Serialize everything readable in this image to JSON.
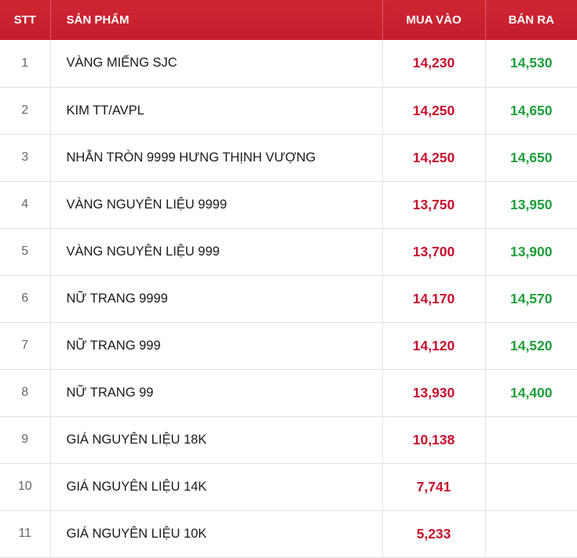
{
  "table": {
    "headers": {
      "stt": "STT",
      "product": "SẢN PHẨM",
      "buy": "MUA VÀO",
      "sell": "BÁN RA"
    },
    "rows": [
      {
        "stt": "1",
        "product": "VÀNG MIẾNG SJC",
        "buy": "14,230",
        "sell": "14,530"
      },
      {
        "stt": "2",
        "product": "KIM TT/AVPL",
        "buy": "14,250",
        "sell": "14,650"
      },
      {
        "stt": "3",
        "product": "NHẪN TRÒN 9999 HƯNG THỊNH VƯỢNG",
        "buy": "14,250",
        "sell": "14,650"
      },
      {
        "stt": "4",
        "product": "VÀNG NGUYÊN LIỆU 9999",
        "buy": "13,750",
        "sell": "13,950"
      },
      {
        "stt": "5",
        "product": "VÀNG NGUYÊN LIỆU 999",
        "buy": "13,700",
        "sell": "13,900"
      },
      {
        "stt": "6",
        "product": "NỮ TRANG 9999",
        "buy": "14,170",
        "sell": "14,570"
      },
      {
        "stt": "7",
        "product": "NỮ TRANG 999",
        "buy": "14,120",
        "sell": "14,520"
      },
      {
        "stt": "8",
        "product": "NỮ TRANG 99",
        "buy": "13,930",
        "sell": "14,400"
      },
      {
        "stt": "9",
        "product": "GIÁ NGUYÊN LIỆU 18K",
        "buy": "10,138",
        "sell": ""
      },
      {
        "stt": "10",
        "product": "GIÁ NGUYÊN LIỆU 14K",
        "buy": "7,741",
        "sell": ""
      },
      {
        "stt": "11",
        "product": "GIÁ NGUYÊN LIỆU 10K",
        "buy": "5,233",
        "sell": ""
      }
    ]
  },
  "colors": {
    "header_bg": "#c8202e",
    "header_text": "#ffffff",
    "buy_price": "#c8102e",
    "sell_price": "#1e9e3a"
  }
}
